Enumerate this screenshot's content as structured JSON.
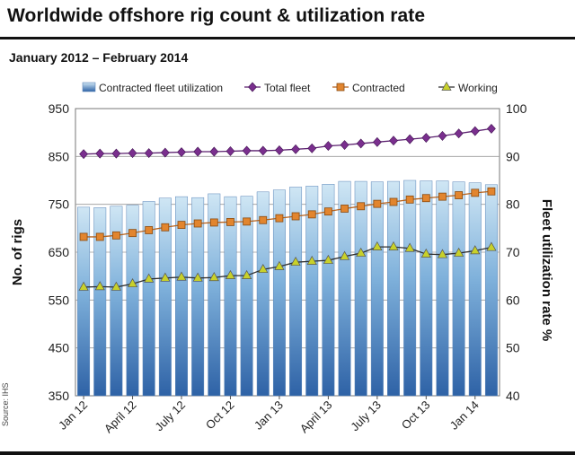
{
  "chart_data": {
    "type": "bar+line",
    "title": "Worldwide offshore rig count & utilization rate",
    "subtitle": "January 2012 – February 2014",
    "source": "Source: IHS",
    "ylabel_left": "No. of rigs",
    "ylabel_right": "Fleet utilization rate %",
    "ylim_left": [
      350,
      950
    ],
    "ylim_right": [
      40,
      100
    ],
    "yticks_left": [
      "950",
      "850",
      "750",
      "650",
      "550",
      "450",
      "350"
    ],
    "yticks_right": [
      "100",
      "90",
      "80",
      "70",
      "60",
      "50",
      "40"
    ],
    "xtick_labels": [
      "Jan 12",
      "April 12",
      "July 12",
      "Oct 12",
      "Jan 13",
      "April 13",
      "July 13",
      "Oct 13",
      "Jan 14"
    ],
    "xtick_positions": [
      0,
      3,
      6,
      9,
      12,
      15,
      18,
      21,
      24
    ],
    "legend_position": "top",
    "grid": true,
    "categories": [
      "Jan 12",
      "Feb 12",
      "Mar 12",
      "Apr 12",
      "May 12",
      "Jun 12",
      "Jul 12",
      "Aug 12",
      "Sep 12",
      "Oct 12",
      "Nov 12",
      "Dec 12",
      "Jan 13",
      "Feb 13",
      "Mar 13",
      "Apr 13",
      "May 13",
      "Jun 13",
      "Jul 13",
      "Aug 13",
      "Sep 13",
      "Oct 13",
      "Nov 13",
      "Dec 13",
      "Jan 14",
      "Feb 14"
    ],
    "series": [
      {
        "name": "Contracted fleet utilization",
        "kind": "bar",
        "axis": "right",
        "color": "#5b86c2",
        "values": [
          79.4,
          79.3,
          79.6,
          79.8,
          80.6,
          81.3,
          81.6,
          81.4,
          82.2,
          81.6,
          81.7,
          82.6,
          83.0,
          83.6,
          83.8,
          84.2,
          84.8,
          84.8,
          84.7,
          84.8,
          85.0,
          84.9,
          84.9,
          84.7,
          84.5,
          84.1
        ]
      },
      {
        "name": "Total fleet",
        "kind": "line",
        "axis": "left",
        "marker": "diamond",
        "color": "#7a2f8e",
        "values": [
          855,
          856,
          856,
          857,
          857,
          858,
          859,
          860,
          860,
          861,
          862,
          862,
          863,
          865,
          867,
          872,
          874,
          877,
          880,
          883,
          886,
          889,
          893,
          898,
          903,
          908
        ]
      },
      {
        "name": "Contracted",
        "kind": "line",
        "axis": "left",
        "marker": "square",
        "color": "#e2852e",
        "values": [
          682,
          682,
          685,
          690,
          696,
          702,
          707,
          710,
          712,
          713,
          714,
          717,
          721,
          725,
          729,
          735,
          741,
          746,
          751,
          755,
          760,
          763,
          766,
          769,
          774,
          777
        ]
      },
      {
        "name": "Working",
        "kind": "line",
        "axis": "left",
        "marker": "triangle",
        "color": "#c8d12a",
        "values": [
          577,
          578,
          577,
          584,
          594,
          596,
          598,
          596,
          597,
          601,
          601,
          614,
          620,
          629,
          631,
          633,
          641,
          648,
          661,
          661,
          658,
          646,
          645,
          648,
          653,
          660
        ]
      }
    ]
  }
}
